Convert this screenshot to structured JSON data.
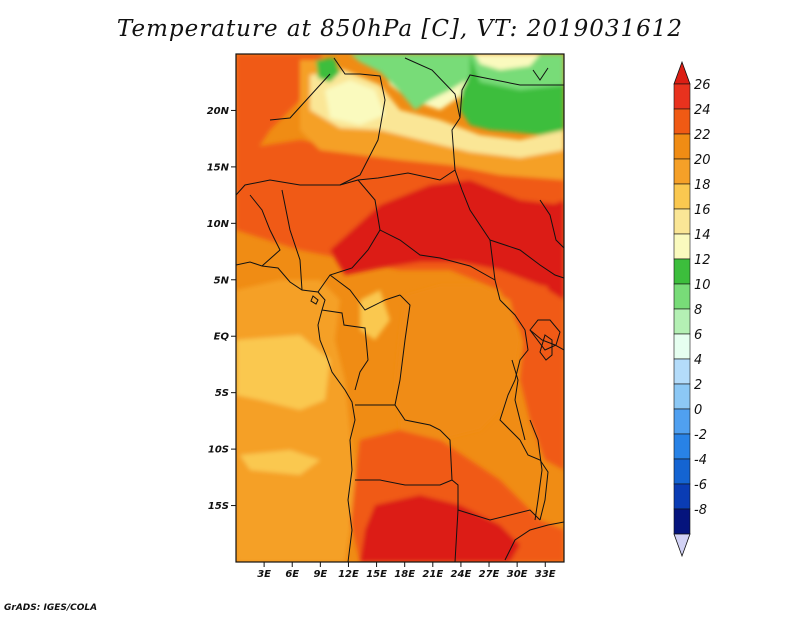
{
  "title": "Temperature at 850hPa [C], VT: 2019031612",
  "credit": "GrADS: IGES/COLA",
  "map": {
    "lon_range": [
      0,
      35
    ],
    "lat_range": [
      -20,
      25
    ],
    "lat_ticks": [
      {
        "value": 20,
        "label": "20N"
      },
      {
        "value": 15,
        "label": "15N"
      },
      {
        "value": 10,
        "label": "10N"
      },
      {
        "value": 5,
        "label": "5N"
      },
      {
        "value": 0,
        "label": "EQ"
      },
      {
        "value": -5,
        "label": "5S"
      },
      {
        "value": -10,
        "label": "10S"
      },
      {
        "value": -15,
        "label": "15S"
      }
    ],
    "lon_ticks": [
      {
        "value": 3,
        "label": "3E"
      },
      {
        "value": 6,
        "label": "6E"
      },
      {
        "value": 9,
        "label": "9E"
      },
      {
        "value": 12,
        "label": "12E"
      },
      {
        "value": 15,
        "label": "15E"
      },
      {
        "value": 18,
        "label": "18E"
      },
      {
        "value": 21,
        "label": "21E"
      },
      {
        "value": 24,
        "label": "24E"
      },
      {
        "value": 27,
        "label": "27E"
      },
      {
        "value": 30,
        "label": "30E"
      },
      {
        "value": 33,
        "label": "33E"
      }
    ]
  },
  "colorbar": {
    "levels": [
      {
        "label": "26",
        "color": "#e8321e"
      },
      {
        "label": "24",
        "color": "#f05a14"
      },
      {
        "label": "22",
        "color": "#f08c14"
      },
      {
        "label": "20",
        "color": "#f5a028"
      },
      {
        "label": "18",
        "color": "#fac850"
      },
      {
        "label": "16",
        "color": "#fae696"
      },
      {
        "label": "14",
        "color": "#fafabe"
      },
      {
        "label": "12",
        "color": "#3cbe3c"
      },
      {
        "label": "10",
        "color": "#78dc78"
      },
      {
        "label": "8",
        "color": "#b4f0b4"
      },
      {
        "label": "6",
        "color": "#e6fff0"
      },
      {
        "label": "4",
        "color": "#b4dcfa"
      },
      {
        "label": "2",
        "color": "#8cc8f5"
      },
      {
        "label": "0",
        "color": "#50a0f0"
      },
      {
        "label": "-2",
        "color": "#2882e6"
      },
      {
        "label": "-4",
        "color": "#1464d2"
      },
      {
        "label": "-6",
        "color": "#0a3cb4"
      },
      {
        "label": "-8",
        "color": "#05147d"
      }
    ],
    "top_color": "#dc1e14",
    "bottom_color": "#d2d2f5"
  },
  "colors": {
    "hot_red": "#dc1e14",
    "red": "#f05a14",
    "dark_orange": "#f08c14",
    "orange": "#f5a028",
    "light_orange": "#fac850",
    "pale_yellow": "#fae696",
    "cream": "#fafabe",
    "green": "#3cbe3c",
    "light_green": "#78dc78"
  }
}
